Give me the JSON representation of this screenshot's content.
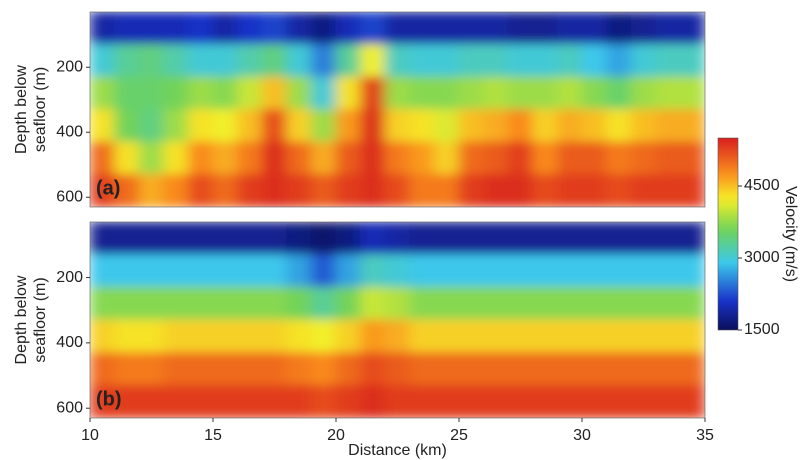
{
  "chart_data": [
    {
      "type": "heatmap",
      "panel_label": "(a)",
      "ylabel": [
        "Depth below",
        "seafloor (m)"
      ],
      "xlim": [
        10,
        35
      ],
      "ylim": [
        30,
        630
      ],
      "yticks": [
        200,
        400,
        600
      ],
      "x": [
        10.5,
        11.5,
        12.5,
        13.5,
        14.5,
        15.5,
        16.5,
        17.5,
        18.5,
        19.5,
        20.5,
        21.5,
        22.5,
        23.5,
        24.5,
        25.5,
        26.5,
        27.5,
        28.5,
        29.5,
        30.5,
        31.5,
        32.5,
        33.5,
        34.5
      ],
      "y": [
        80,
        180,
        280,
        380,
        480,
        580
      ],
      "z": [
        [
          1900,
          2000,
          2000,
          2000,
          2100,
          1900,
          2100,
          2200,
          1900,
          1700,
          2000,
          2200,
          1900,
          1900,
          1900,
          1900,
          1900,
          1800,
          1800,
          1900,
          1900,
          1700,
          1800,
          1900,
          1900
        ],
        [
          3000,
          3300,
          3400,
          3200,
          3000,
          3000,
          3200,
          3400,
          3000,
          2500,
          3300,
          4200,
          3100,
          3000,
          3000,
          3100,
          3100,
          3000,
          3000,
          3100,
          2900,
          2700,
          3000,
          3100,
          3100
        ],
        [
          3800,
          3500,
          3500,
          3600,
          3800,
          3700,
          4000,
          4500,
          3800,
          3000,
          4300,
          5300,
          3800,
          3700,
          3700,
          3800,
          3900,
          3800,
          3800,
          3900,
          3700,
          3500,
          3800,
          3900,
          3900
        ],
        [
          4300,
          3600,
          3400,
          3800,
          4300,
          4200,
          4500,
          5200,
          4400,
          3800,
          4700,
          5400,
          4400,
          4300,
          4100,
          4500,
          4600,
          4800,
          4400,
          4600,
          4500,
          4300,
          4500,
          4600,
          4600
        ],
        [
          5000,
          4300,
          3800,
          4300,
          4800,
          4600,
          4900,
          5400,
          5000,
          4600,
          5100,
          5400,
          4900,
          4700,
          4400,
          5000,
          5100,
          5300,
          4800,
          5100,
          5100,
          4900,
          5000,
          5100,
          5100
        ],
        [
          5300,
          5000,
          4600,
          4800,
          5200,
          5000,
          5300,
          5400,
          5300,
          5100,
          5300,
          5400,
          5200,
          4900,
          4900,
          5300,
          5400,
          5400,
          5200,
          5300,
          5300,
          5200,
          5300,
          5300,
          5300
        ]
      ]
    },
    {
      "type": "heatmap",
      "panel_label": "(b)",
      "ylabel": [
        "Depth below",
        "seafloor (m)"
      ],
      "xlim": [
        10,
        35
      ],
      "ylim": [
        30,
        630
      ],
      "yticks": [
        200,
        400,
        600
      ],
      "xticks": [
        10,
        15,
        20,
        25,
        30,
        35
      ],
      "xlabel": "Distance (km)",
      "x": [
        10.5,
        11.5,
        12.5,
        13.5,
        14.5,
        15.5,
        16.5,
        17.5,
        18.5,
        19.5,
        20.5,
        21.5,
        22.5,
        23.5,
        24.5,
        25.5,
        26.5,
        27.5,
        28.5,
        29.5,
        30.5,
        31.5,
        32.5,
        33.5,
        34.5
      ],
      "y": [
        80,
        180,
        280,
        380,
        480,
        580
      ],
      "z": [
        [
          1800,
          1800,
          1800,
          1800,
          1800,
          1800,
          1800,
          1800,
          1700,
          1600,
          1700,
          2000,
          1900,
          1800,
          1800,
          1800,
          1800,
          1800,
          1800,
          1800,
          1800,
          1800,
          1800,
          1800,
          1800
        ],
        [
          2900,
          2900,
          2900,
          2900,
          2900,
          2900,
          2900,
          2900,
          2700,
          2300,
          2700,
          3100,
          3000,
          2900,
          2900,
          2900,
          2900,
          2900,
          2900,
          2900,
          2900,
          2900,
          2900,
          2900,
          2900
        ],
        [
          3700,
          3700,
          3700,
          3700,
          3700,
          3700,
          3700,
          3700,
          3600,
          3300,
          3600,
          4000,
          3900,
          3700,
          3700,
          3700,
          3700,
          3700,
          3700,
          3700,
          3700,
          3700,
          3700,
          3700,
          3700
        ],
        [
          4400,
          4300,
          4300,
          4400,
          4400,
          4400,
          4400,
          4400,
          4300,
          4200,
          4400,
          4700,
          4600,
          4400,
          4400,
          4400,
          4400,
          4400,
          4400,
          4400,
          4400,
          4400,
          4400,
          4400,
          4400
        ],
        [
          5000,
          4900,
          4900,
          5000,
          5000,
          5000,
          5000,
          5000,
          4900,
          4800,
          5000,
          5200,
          5100,
          5000,
          5000,
          5000,
          5000,
          5000,
          5000,
          5000,
          5000,
          5000,
          5000,
          5000,
          5000
        ],
        [
          5300,
          5300,
          5300,
          5300,
          5300,
          5300,
          5300,
          5300,
          5300,
          5200,
          5300,
          5400,
          5300,
          5300,
          5300,
          5300,
          5300,
          5300,
          5300,
          5300,
          5300,
          5300,
          5300,
          5300,
          5300
        ]
      ]
    }
  ],
  "colorbar": {
    "label": "Velocity (m/s)",
    "lim": [
      1500,
      5500
    ],
    "ticks": [
      1500,
      3000,
      4500
    ]
  }
}
